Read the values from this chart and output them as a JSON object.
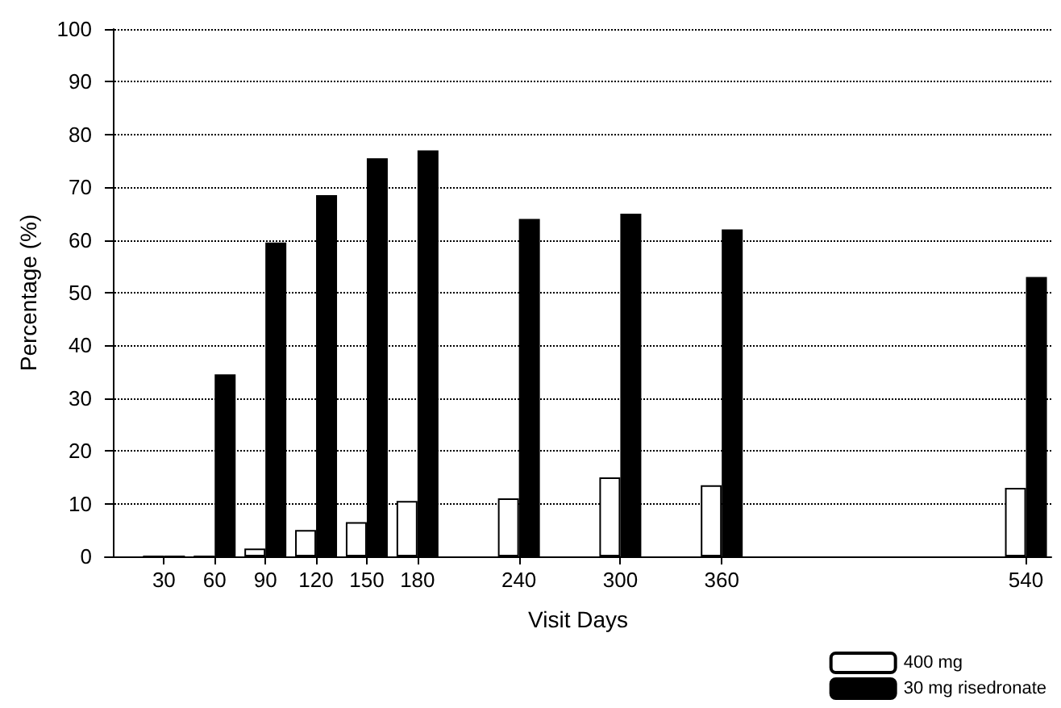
{
  "chart_data": {
    "type": "bar",
    "xlabel": "Visit Days",
    "ylabel": "Percentage (%)",
    "x": [
      30,
      60,
      90,
      120,
      150,
      180,
      240,
      300,
      360,
      540
    ],
    "series": [
      {
        "name": "400 mg",
        "color": "#ffffff",
        "values": [
          0,
          0,
          1.5,
          5,
          6.5,
          10.5,
          11,
          15,
          13.5,
          13
        ]
      },
      {
        "name": "30 mg risedronate",
        "color": "#000000",
        "values": [
          0,
          34.5,
          59.5,
          68.5,
          75.5,
          77,
          64,
          65,
          62,
          53
        ]
      }
    ],
    "xlim": [
      -5,
      555
    ],
    "xticks": [
      30,
      60,
      90,
      120,
      150,
      180,
      240,
      300,
      360,
      540
    ],
    "ylim": [
      0,
      100
    ],
    "yticks": [
      0,
      10,
      20,
      30,
      40,
      50,
      60,
      70,
      80,
      90,
      100
    ],
    "grid": "y",
    "legend": "bottom right"
  }
}
